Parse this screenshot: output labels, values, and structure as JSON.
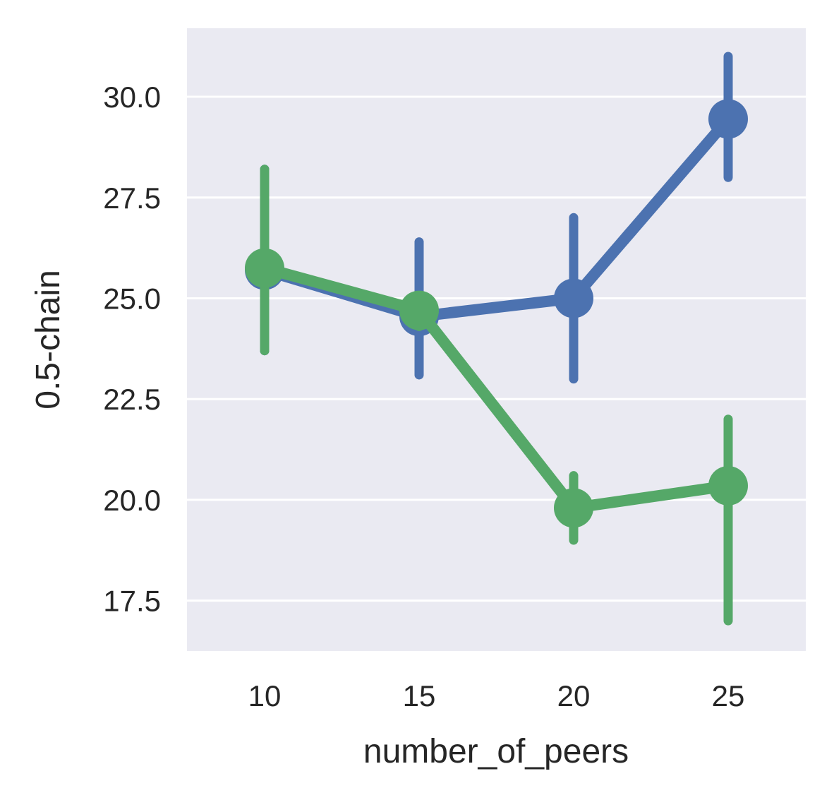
{
  "chart_data": {
    "type": "line",
    "style": "point-plot with error bars",
    "xlabel": "number_of_peers",
    "ylabel": "0.5-chain",
    "categories": [
      "10",
      "15",
      "20",
      "25"
    ],
    "yticks": [
      "17.5",
      "20.0",
      "22.5",
      "25.0",
      "27.5",
      "30.0"
    ],
    "ylim": [
      16.25,
      31.7
    ],
    "grid": true,
    "background_color": "#eaeaf2",
    "series": [
      {
        "color": "#4c72b0",
        "values": [
          25.7,
          24.55,
          25.0,
          29.45
        ],
        "error_low": [
          23.7,
          23.1,
          23.0,
          28.0
        ],
        "error_high": [
          28.2,
          26.4,
          27.0,
          31.0
        ]
      },
      {
        "color": "#55a868",
        "values": [
          25.75,
          24.7,
          19.8,
          20.35
        ],
        "error_low": [
          23.7,
          24.3,
          19.0,
          17.0
        ],
        "error_high": [
          28.2,
          25.0,
          20.6,
          22.0
        ]
      }
    ]
  }
}
